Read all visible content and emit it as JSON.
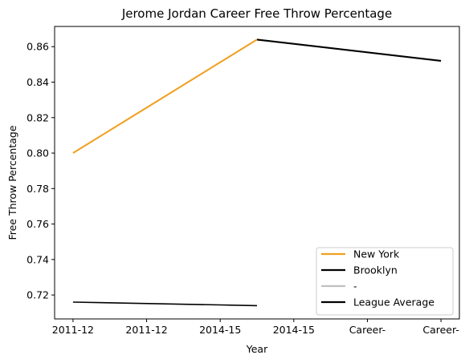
{
  "chart_data": {
    "type": "line",
    "title": "Jerome Jordan Career Free Throw Percentage",
    "xlabel": "Year",
    "ylabel": "Free Throw Percentage",
    "x_tick_labels": [
      "2011-12",
      "2011-12",
      "2014-15",
      "2014-15",
      "Career-",
      "Career-"
    ],
    "y_ticks": [
      0.72,
      0.74,
      0.76,
      0.78,
      0.8,
      0.82,
      0.84,
      0.86
    ],
    "ylim": [
      0.7065,
      0.8714
    ],
    "xlim": [
      -0.25,
      5.25
    ],
    "grid": false,
    "legend_position": "lower right",
    "series": [
      {
        "name": "New York",
        "color": "#f0a020",
        "points": [
          [
            0,
            0.8
          ],
          [
            2.5,
            0.864
          ]
        ]
      },
      {
        "name": "Brooklyn",
        "color": "#000000",
        "points": [
          [
            2.5,
            0.864
          ],
          [
            5,
            0.852
          ]
        ]
      },
      {
        "name": "-",
        "color": "#c0c0c0",
        "points": []
      },
      {
        "name": "League Average",
        "color": "#000000",
        "points": [
          [
            0,
            0.716
          ],
          [
            2.5,
            0.714
          ]
        ]
      }
    ]
  }
}
